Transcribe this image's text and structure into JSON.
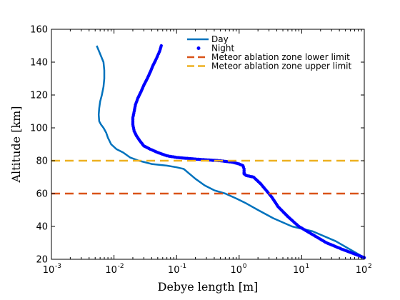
{
  "chart_data": {
    "type": "line",
    "title": "",
    "xlabel": "Debye length [m]",
    "ylabel": "Altitude [km]",
    "xscale": "log",
    "xlim": [
      0.001,
      100
    ],
    "ylim": [
      20,
      160
    ],
    "xticks": [
      0.001,
      0.01,
      0.1,
      1,
      10,
      100
    ],
    "xtick_labels": [
      {
        "base": "10",
        "exp": "-3"
      },
      {
        "base": "10",
        "exp": "-2"
      },
      {
        "base": "10",
        "exp": "-1"
      },
      {
        "base": "10",
        "exp": "0"
      },
      {
        "base": "10",
        "exp": "1"
      },
      {
        "base": "10",
        "exp": "2"
      }
    ],
    "yticks": [
      20,
      40,
      60,
      80,
      100,
      120,
      140,
      160
    ],
    "ytick_labels": [
      "20",
      "40",
      "60",
      "80",
      "100",
      "120",
      "140",
      "160"
    ],
    "grid": false,
    "legend_position": "top-right",
    "series": [
      {
        "name": "Day",
        "style": "line",
        "color": "#0072bd",
        "x": [
          0.0053,
          0.006,
          0.0068,
          0.007,
          0.007,
          0.0068,
          0.0064,
          0.006,
          0.0058,
          0.0057,
          0.0058,
          0.0062,
          0.0068,
          0.0075,
          0.008,
          0.009,
          0.011,
          0.014,
          0.018,
          0.025,
          0.04,
          0.07,
          0.1,
          0.13,
          0.15,
          0.2,
          0.28,
          0.4,
          0.6,
          0.9,
          1.3,
          2.0,
          3.5,
          7.0,
          15.0,
          35.0,
          100.0
        ],
        "y": [
          150,
          145,
          140,
          135,
          130,
          125,
          120,
          116,
          112,
          108,
          104,
          102,
          100,
          97,
          94,
          90,
          87,
          85,
          82,
          80,
          78,
          77,
          76,
          75,
          73,
          69,
          65,
          62,
          60,
          57,
          54,
          50,
          45,
          40,
          37,
          31,
          21
        ]
      },
      {
        "name": "Night",
        "style": "dots",
        "color": "#0000ff",
        "x": [
          0.057,
          0.054,
          0.05,
          0.046,
          0.042,
          0.038,
          0.034,
          0.03,
          0.027,
          0.024,
          0.022,
          0.021,
          0.02,
          0.02,
          0.021,
          0.023,
          0.026,
          0.03,
          0.038,
          0.05,
          0.07,
          0.1,
          0.14,
          0.2,
          0.3,
          0.5,
          0.8,
          1.0,
          1.15,
          1.2,
          1.2,
          1.2,
          1.3,
          1.7,
          2.2,
          2.7,
          3.3,
          4.2,
          6.0,
          9.0,
          15.0,
          25.0,
          45.0,
          100.0
        ],
        "y": [
          150,
          147,
          144,
          141,
          138,
          134,
          130,
          126,
          122,
          118,
          114,
          110,
          106,
          102,
          98,
          95,
          92,
          89,
          87,
          85,
          83,
          82,
          81.5,
          81,
          80.5,
          80,
          79,
          78,
          77,
          75,
          73,
          72,
          71,
          70,
          66,
          62,
          58,
          52,
          46,
          40,
          35,
          30,
          26,
          21
        ]
      },
      {
        "name": "Meteor ablation zone lower limit",
        "style": "dashed-hline",
        "color": "#d95319",
        "y_value": 60
      },
      {
        "name": "Meteor ablation zone upper limit",
        "style": "dashed-hline",
        "color": "#edb120",
        "y_value": 80
      }
    ]
  }
}
